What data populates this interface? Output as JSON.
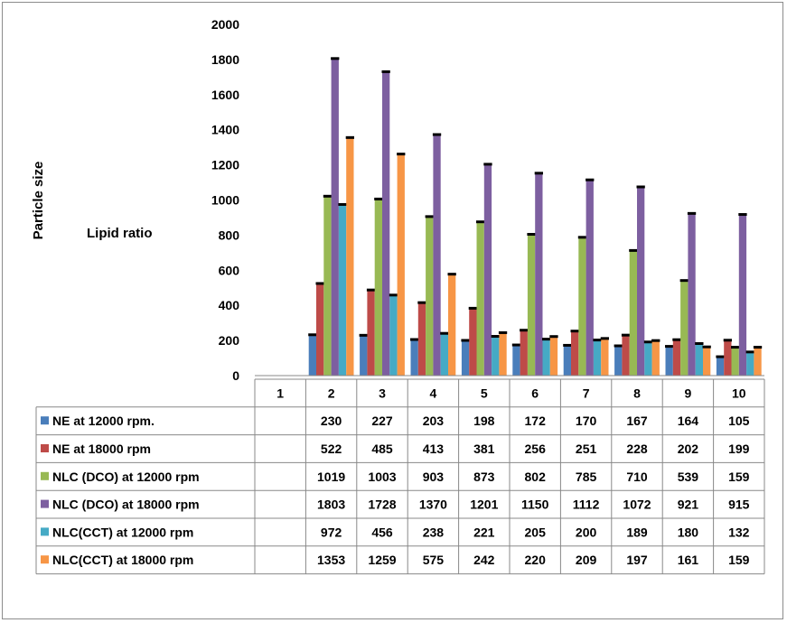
{
  "chart_data": {
    "type": "bar",
    "title": "",
    "xlabel": "Lipid ratio",
    "ylabel": "Particle size",
    "ylim": [
      0,
      2000
    ],
    "ytick_step": 200,
    "grid": false,
    "legend": "data-table-left",
    "categories": [
      "1",
      "2",
      "3",
      "4",
      "5",
      "6",
      "7",
      "8",
      "9",
      "10"
    ],
    "series": [
      {
        "name": "NE at 12000 rpm.",
        "color": "#4a7ebb",
        "values": [
          null,
          230,
          227,
          203,
          198,
          172,
          170,
          167,
          164,
          105
        ]
      },
      {
        "name": "NE at 18000 rpm",
        "color": "#be4b48",
        "values": [
          null,
          522,
          485,
          413,
          381,
          256,
          251,
          228,
          202,
          199
        ]
      },
      {
        "name": "NLC (DCO) at 12000 rpm",
        "color": "#98b954",
        "values": [
          null,
          1019,
          1003,
          903,
          873,
          802,
          785,
          710,
          539,
          159
        ]
      },
      {
        "name": "NLC (DCO) at 18000 rpm",
        "color": "#7d5fa0",
        "values": [
          null,
          1803,
          1728,
          1370,
          1201,
          1150,
          1112,
          1072,
          921,
          915
        ]
      },
      {
        "name": "NLC(CCT) at 12000 rpm",
        "color": "#46aac5",
        "values": [
          null,
          972,
          456,
          238,
          221,
          205,
          200,
          189,
          180,
          132
        ]
      },
      {
        "name": "NLC(CCT) at 18000 rpm",
        "color": "#f79646",
        "values": [
          null,
          1353,
          1259,
          575,
          242,
          220,
          209,
          197,
          161,
          159
        ]
      }
    ]
  }
}
